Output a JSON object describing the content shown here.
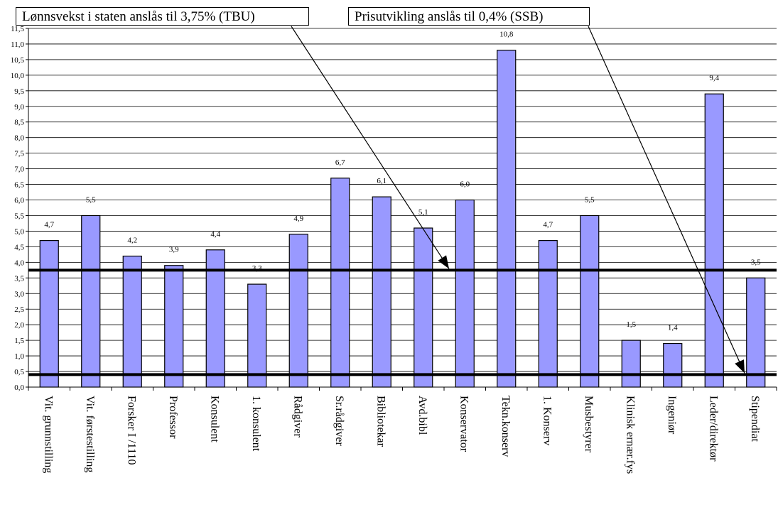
{
  "chart_data": {
    "type": "bar",
    "categories": [
      "Vit. grunnstilling",
      "Vit. førstestilling",
      "Forsker I /1110",
      "Professor",
      "Konsulent",
      "1. konsulent",
      "Rådgiver",
      "Sr.rådgiver",
      "Bibliotekar",
      "Avd.bibl",
      "Konservator",
      "Tekn.konserv",
      "1. Konserv",
      "Musbestyrer",
      "Klinisk ernær.fys",
      "Ingeniør",
      "Leder/direktør",
      "Stipendiat"
    ],
    "values": [
      4.7,
      5.5,
      4.2,
      3.9,
      4.4,
      3.3,
      4.9,
      6.7,
      6.1,
      5.1,
      6.0,
      10.8,
      4.7,
      5.5,
      1.5,
      1.4,
      9.4,
      3.5
    ],
    "value_labels": [
      "4,7",
      "5,5",
      "4,2",
      "3,9",
      "4,4",
      "3,3",
      "4,9",
      "6,7",
      "6,1",
      "5,1",
      "6,0",
      "10,8",
      "4,7",
      "5,5",
      "1,5",
      "1,4",
      "9,4",
      "3,5"
    ],
    "ylim": [
      0,
      11.5
    ],
    "y_ticks": [
      "0,0",
      "0,5",
      "1,0",
      "1,5",
      "2,0",
      "2,5",
      "3,0",
      "3,5",
      "4,0",
      "4,5",
      "5,0",
      "5,5",
      "6,0",
      "6,5",
      "7,0",
      "7,5",
      "8,0",
      "8,5",
      "9,0",
      "9,5",
      "10,0",
      "10,5",
      "11,0",
      "11,5"
    ],
    "grid": true,
    "reference_lines": [
      {
        "value": 3.75,
        "label": "Lønnsvekst i staten anslås til 3,75% (TBU)"
      },
      {
        "value": 0.4,
        "label": "Prisutvikling anslås til 0,4% (SSB)"
      }
    ],
    "colors": {
      "bar_fill": "#9999ff",
      "bar_stroke": "#000000",
      "grid": "#000000",
      "reference": "#000000"
    }
  }
}
